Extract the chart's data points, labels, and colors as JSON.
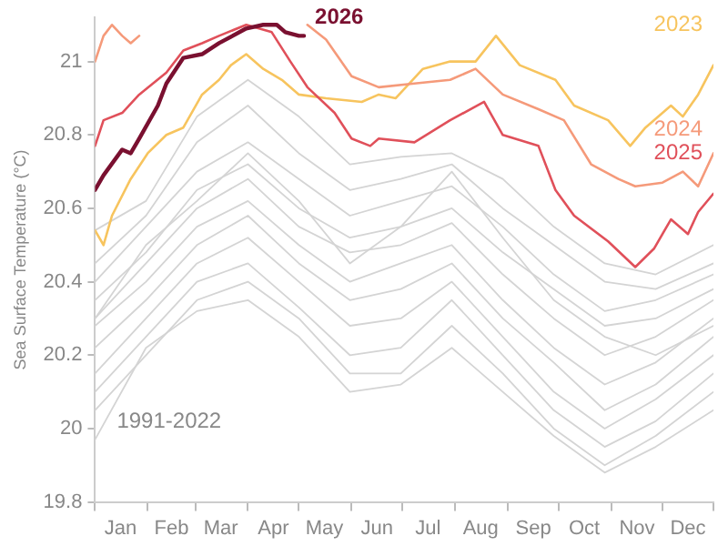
{
  "chart_data": {
    "type": "line",
    "ylabel": "Sea Surface Temperature (°C)",
    "annotations": [
      "1991-2022"
    ],
    "xlim": [
      "--01-01",
      "--12-31"
    ],
    "ylim": [
      19.8,
      21.12
    ],
    "x": [
      "--01-01",
      "--01-31",
      "--03-02",
      "--04-01",
      "--05-01",
      "--05-31",
      "--06-30",
      "--07-30",
      "--08-29",
      "--09-28",
      "--10-28",
      "--11-27",
      "--12-31"
    ],
    "xticks": [
      {
        "value": "--01-01",
        "label": null
      },
      {
        "value": "--01-16",
        "label": "Jan"
      },
      {
        "value": "--02-01",
        "label": null
      },
      {
        "value": "--02-15",
        "label": "Feb"
      },
      {
        "value": "--03-01",
        "label": null
      },
      {
        "value": "--03-16",
        "label": "Mar"
      },
      {
        "value": "--04-01",
        "label": null
      },
      {
        "value": "--04-16",
        "label": "Apr"
      },
      {
        "value": "--05-01",
        "label": null
      },
      {
        "value": "--05-16",
        "label": "May"
      },
      {
        "value": "--06-01",
        "label": null
      },
      {
        "value": "--06-16",
        "label": "Jun"
      },
      {
        "value": "--07-01",
        "label": null
      },
      {
        "value": "--07-16",
        "label": "Jul"
      },
      {
        "value": "--08-01",
        "label": null
      },
      {
        "value": "--08-16",
        "label": "Aug"
      },
      {
        "value": "--09-01",
        "label": null
      },
      {
        "value": "--09-16",
        "label": "Sep"
      },
      {
        "value": "--10-01",
        "label": null
      },
      {
        "value": "--10-16",
        "label": "Oct"
      },
      {
        "value": "--11-01",
        "label": null
      },
      {
        "value": "--11-16",
        "label": "Nov"
      },
      {
        "value": "--12-01",
        "label": null
      },
      {
        "value": "--12-16",
        "label": "Dec"
      },
      {
        "value": "--12-31",
        "label": null
      }
    ],
    "yticks": [
      19.8,
      20.0,
      20.2,
      20.4,
      20.6,
      20.8,
      21.0
    ],
    "grid": false,
    "legend": false,
    "marker": "none",
    "line_style": "solid",
    "series": [
      {
        "color": "#d4d4d4",
        "values": [
          20.54,
          20.62,
          20.85,
          20.95,
          20.85,
          20.72,
          20.74,
          20.75,
          20.68,
          20.55,
          20.45,
          20.42,
          20.5
        ]
      },
      {
        "color": "#d4d4d4",
        "values": [
          20.45,
          20.58,
          20.78,
          20.88,
          20.75,
          20.65,
          20.68,
          20.72,
          20.6,
          20.5,
          20.4,
          20.38,
          20.45
        ]
      },
      {
        "color": "#d4d4d4",
        "values": [
          20.4,
          20.55,
          20.7,
          20.78,
          20.68,
          20.58,
          20.62,
          20.66,
          20.55,
          20.42,
          20.32,
          20.35,
          20.42
        ]
      },
      {
        "color": "#d4d4d4",
        "values": [
          20.35,
          20.48,
          20.65,
          20.72,
          20.6,
          20.52,
          20.55,
          20.6,
          20.48,
          20.38,
          20.28,
          20.3,
          20.38
        ]
      },
      {
        "color": "#d4d4d4",
        "values": [
          20.3,
          20.45,
          20.6,
          20.68,
          20.55,
          20.48,
          20.5,
          20.56,
          20.42,
          20.3,
          20.2,
          20.25,
          20.35
        ]
      },
      {
        "color": "#d4d4d4",
        "values": [
          20.28,
          20.4,
          20.55,
          20.62,
          20.5,
          20.4,
          20.45,
          20.5,
          20.35,
          20.22,
          20.12,
          20.18,
          20.3
        ]
      },
      {
        "color": "#d4d4d4",
        "values": [
          20.22,
          20.35,
          20.5,
          20.58,
          20.45,
          20.35,
          20.38,
          20.45,
          20.3,
          20.18,
          20.05,
          20.12,
          20.25
        ]
      },
      {
        "color": "#d4d4d4",
        "values": [
          20.15,
          20.3,
          20.45,
          20.52,
          20.4,
          20.28,
          20.3,
          20.4,
          20.25,
          20.1,
          20.0,
          20.08,
          20.2
        ]
      },
      {
        "color": "#d4d4d4",
        "values": [
          20.1,
          20.25,
          20.4,
          20.45,
          20.33,
          20.2,
          20.22,
          20.35,
          20.2,
          20.05,
          19.95,
          20.02,
          20.15
        ]
      },
      {
        "color": "#d4d4d4",
        "values": [
          20.05,
          20.2,
          20.35,
          20.4,
          20.3,
          20.15,
          20.15,
          20.28,
          20.15,
          20.0,
          19.9,
          19.98,
          20.1
        ]
      },
      {
        "color": "#d4d4d4",
        "values": [
          19.97,
          20.22,
          20.32,
          20.35,
          20.25,
          20.1,
          20.12,
          20.22,
          20.1,
          19.98,
          19.88,
          19.95,
          20.05
        ]
      },
      {
        "color": "#d4d4d4",
        "values": [
          20.3,
          20.5,
          20.62,
          20.75,
          20.62,
          20.45,
          20.55,
          20.7,
          20.52,
          20.35,
          20.25,
          20.2,
          20.28
        ]
      },
      {
        "name": "2023",
        "color": "#f7c45e",
        "x": [
          "--01-01",
          "--01-06",
          "--01-11",
          "--01-22",
          "--02-01",
          "--02-12",
          "--02-22",
          "--03-05",
          "--03-15",
          "--03-22",
          "--03-31",
          "--04-10",
          "--04-21",
          "--05-01",
          "--05-17",
          "--06-07",
          "--06-17",
          "--06-27",
          "--07-13",
          "--07-29",
          "--08-13",
          "--08-25",
          "--09-08",
          "--09-29",
          "--10-10",
          "--10-30",
          "--11-12",
          "--11-21",
          "--12-06",
          "--12-13",
          "--12-22",
          "--12-31"
        ],
        "values": [
          20.54,
          20.5,
          20.58,
          20.68,
          20.75,
          20.8,
          20.82,
          20.91,
          20.95,
          20.99,
          21.02,
          20.98,
          20.95,
          20.91,
          20.9,
          20.89,
          20.91,
          20.9,
          20.98,
          21.0,
          21.0,
          21.07,
          20.99,
          20.95,
          20.88,
          20.84,
          20.77,
          20.82,
          20.88,
          20.85,
          20.91,
          20.99
        ]
      },
      {
        "name": "2024",
        "color": "#f59a7a",
        "x": [
          "--01-01",
          "--01-06",
          "--01-11",
          "--01-17",
          "--01-22",
          "--01-27",
          "--02-05",
          "--04-26",
          "--05-06",
          "--05-17",
          "--06-01",
          "--06-17",
          "--07-08",
          "--07-29",
          "--08-13",
          "--08-29",
          "--09-19",
          "--10-04",
          "--10-20",
          "--11-05",
          "--11-15",
          "--12-01",
          "--12-13",
          "--12-22",
          "--12-31"
        ],
        "values": [
          21.0,
          21.07,
          21.1,
          21.07,
          21.05,
          21.07,
          null,
          null,
          21.1,
          21.06,
          20.96,
          20.93,
          20.94,
          20.95,
          20.98,
          20.91,
          20.87,
          20.84,
          20.72,
          20.68,
          20.66,
          20.67,
          20.7,
          20.66,
          20.75
        ]
      },
      {
        "name": "2025",
        "color": "#e0505a",
        "x": [
          "--01-01",
          "--01-06",
          "--01-17",
          "--01-27",
          "--02-12",
          "--02-22",
          "--03-05",
          "--03-15",
          "--03-31",
          "--04-15",
          "--04-26",
          "--05-06",
          "--05-22",
          "--06-01",
          "--06-12",
          "--06-17",
          "--07-08",
          "--07-29",
          "--08-18",
          "--08-29",
          "--09-19",
          "--09-29",
          "--10-10",
          "--10-30",
          "--11-15",
          "--11-26",
          "--12-06",
          "--12-16",
          "--12-22",
          "--12-31"
        ],
        "values": [
          20.77,
          20.84,
          20.86,
          20.91,
          20.97,
          21.03,
          21.05,
          21.07,
          21.1,
          21.08,
          21.0,
          20.93,
          20.86,
          20.79,
          20.77,
          20.79,
          20.78,
          20.84,
          20.89,
          20.8,
          20.77,
          20.65,
          20.58,
          20.51,
          20.44,
          20.49,
          20.57,
          20.53,
          20.59,
          20.64
        ]
      },
      {
        "name": "2026",
        "color": "#7a1030",
        "x": [
          "--01-01",
          "--01-06",
          "--01-17",
          "--01-22",
          "--01-27",
          "--02-07",
          "--02-12",
          "--02-22",
          "--03-05",
          "--03-15",
          "--03-31",
          "--04-10",
          "--04-18",
          "--04-23",
          "--05-01",
          "--05-04"
        ],
        "values": [
          20.65,
          20.69,
          20.76,
          20.75,
          20.79,
          20.88,
          20.94,
          21.01,
          21.02,
          21.05,
          21.09,
          21.1,
          21.1,
          21.08,
          21.07,
          21.07
        ]
      }
    ]
  }
}
